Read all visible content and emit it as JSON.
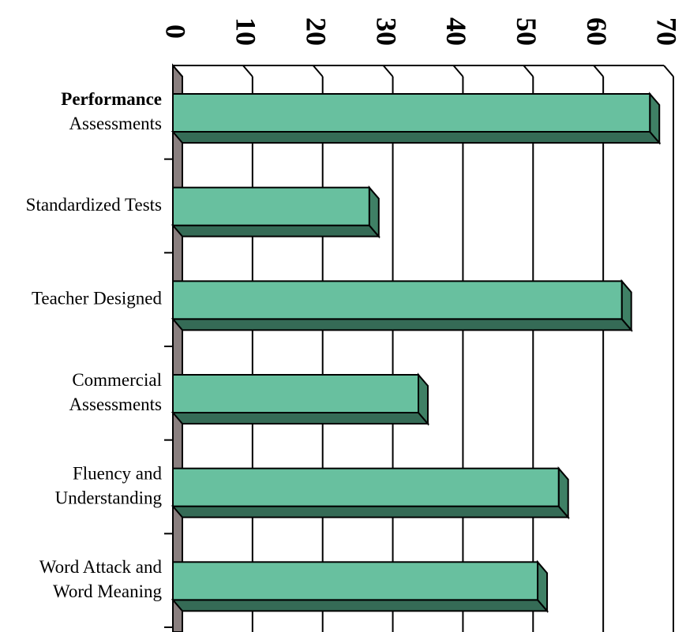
{
  "chart_data": {
    "type": "bar3d_horizontal",
    "categories": [
      [
        "Performance",
        "Assessments"
      ],
      [
        "Standardized Tests"
      ],
      [
        "Teacher Designed"
      ],
      [
        "Commercial",
        "Assessments"
      ],
      [
        "Fluency and",
        "Understanding"
      ],
      [
        "Word Attack and",
        "Word Meaning"
      ]
    ],
    "values": [
      68,
      28,
      64,
      35,
      55,
      52
    ],
    "color": "#68c09f",
    "xlim": [
      0,
      70
    ],
    "xticks": [
      0,
      10,
      20,
      30,
      40,
      50,
      60,
      70
    ],
    "grid": true
  }
}
